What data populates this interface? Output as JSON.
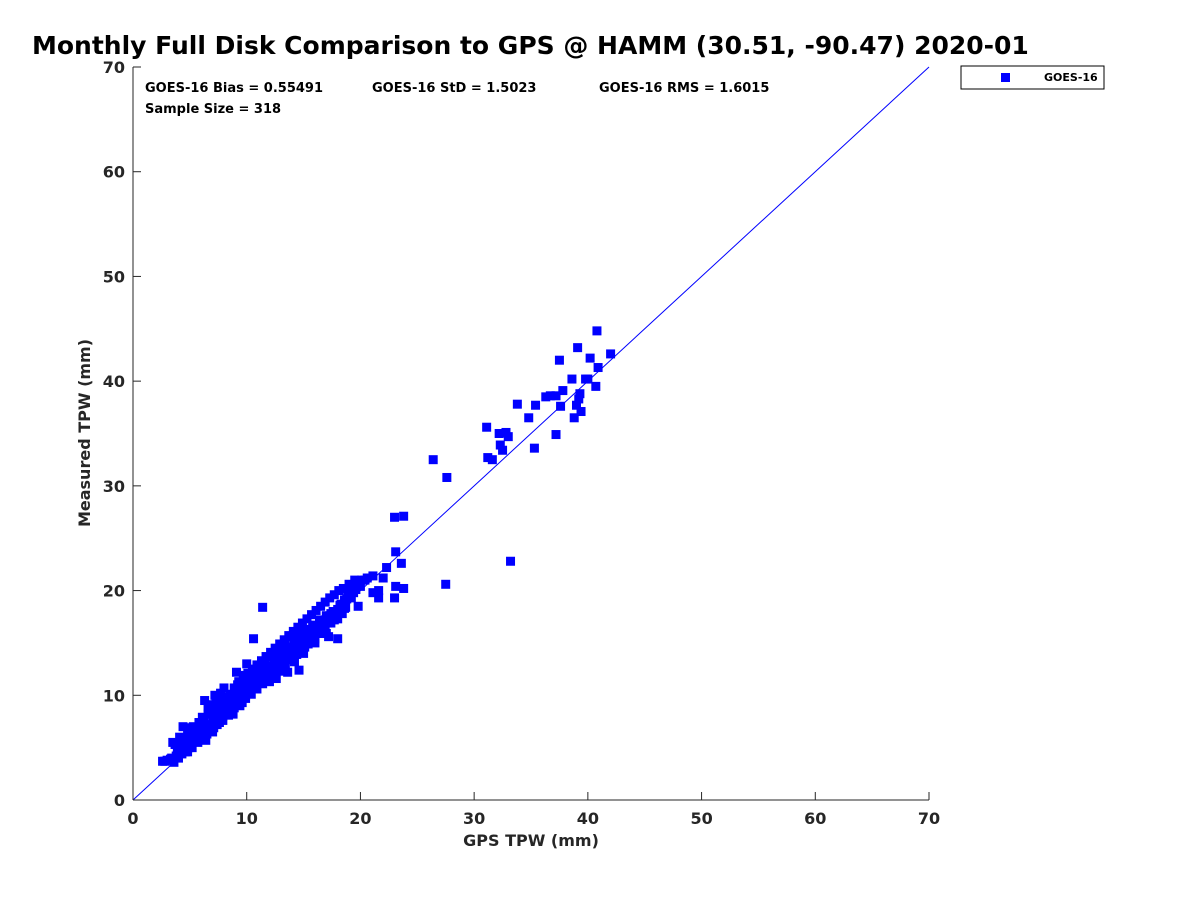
{
  "chart_data": {
    "type": "scatter",
    "title": "Monthly Full Disk Comparison to GPS @ HAMM (30.51, -90.47) 2020-01",
    "xlabel": "GPS TPW (mm)",
    "ylabel": "Measured TPW (mm)",
    "xlim": [
      0,
      70
    ],
    "ylim": [
      0,
      70
    ],
    "xticks": [
      "0",
      "10",
      "20",
      "30",
      "40",
      "50",
      "60",
      "70"
    ],
    "yticks": [
      "0",
      "10",
      "20",
      "30",
      "40",
      "50",
      "60",
      "70"
    ],
    "grid": false,
    "legend_position": "outside top-right",
    "reference_line": "y = x",
    "marker_color": "#0000ff",
    "line_color": "#0000ff",
    "stats": {
      "bias": "GOES-16 Bias = 0.55491",
      "std": "GOES-16 StD = 1.5023",
      "rms": "GOES-16 RMS = 1.6015",
      "sample": "Sample Size = 318"
    },
    "series": [
      {
        "name": "GOES-16",
        "points": [
          [
            2.6,
            3.7
          ],
          [
            3.0,
            3.8
          ],
          [
            3.3,
            3.9
          ],
          [
            3.6,
            3.6
          ],
          [
            3.8,
            4.2
          ],
          [
            4.0,
            4.6
          ],
          [
            4.2,
            5.2
          ],
          [
            4.5,
            4.8
          ],
          [
            4.7,
            5.6
          ],
          [
            4.9,
            5.0
          ],
          [
            5.1,
            5.4
          ],
          [
            5.3,
            5.9
          ],
          [
            5.0,
            6.3
          ],
          [
            5.5,
            6.0
          ],
          [
            5.7,
            5.5
          ],
          [
            5.9,
            6.4
          ],
          [
            6.1,
            6.8
          ],
          [
            6.3,
            6.0
          ],
          [
            6.5,
            7.2
          ],
          [
            6.8,
            6.6
          ],
          [
            7.0,
            7.5
          ],
          [
            7.2,
            8.0
          ],
          [
            7.4,
            8.6
          ],
          [
            7.6,
            9.0
          ],
          [
            7.8,
            8.3
          ],
          [
            8.0,
            8.8
          ],
          [
            8.2,
            9.4
          ],
          [
            8.4,
            9.8
          ],
          [
            8.6,
            10.1
          ],
          [
            8.8,
            9.2
          ],
          [
            9.0,
            10.3
          ],
          [
            9.2,
            9.7
          ],
          [
            9.4,
            10.6
          ],
          [
            9.6,
            11.0
          ],
          [
            9.8,
            10.4
          ],
          [
            10.0,
            10.8
          ],
          [
            10.2,
            11.2
          ],
          [
            10.4,
            11.6
          ],
          [
            10.6,
            11.0
          ],
          [
            10.8,
            11.5
          ],
          [
            11.0,
            11.9
          ],
          [
            11.2,
            12.3
          ],
          [
            11.4,
            11.7
          ],
          [
            11.6,
            12.2
          ],
          [
            11.8,
            12.6
          ],
          [
            12.0,
            12.0
          ],
          [
            12.2,
            12.8
          ],
          [
            12.4,
            13.2
          ],
          [
            12.6,
            12.5
          ],
          [
            12.8,
            13.6
          ],
          [
            13.0,
            13.0
          ],
          [
            13.2,
            13.9
          ],
          [
            13.4,
            14.3
          ],
          [
            13.6,
            13.5
          ],
          [
            13.8,
            14.6
          ],
          [
            14.0,
            14.0
          ],
          [
            14.2,
            15.0
          ],
          [
            14.4,
            14.4
          ],
          [
            14.6,
            15.4
          ],
          [
            14.8,
            15.8
          ],
          [
            15.0,
            15.1
          ],
          [
            15.3,
            15.6
          ],
          [
            15.6,
            16.2
          ],
          [
            15.9,
            15.8
          ],
          [
            16.2,
            16.6
          ],
          [
            16.5,
            17.0
          ],
          [
            16.8,
            16.5
          ],
          [
            17.1,
            17.3
          ],
          [
            17.4,
            17.8
          ],
          [
            17.7,
            17.2
          ],
          [
            18.0,
            18.2
          ],
          [
            18.3,
            18.7
          ],
          [
            18.6,
            19.1
          ],
          [
            18.9,
            19.5
          ],
          [
            19.2,
            19.9
          ],
          [
            19.5,
            20.3
          ],
          [
            19.8,
            20.6
          ],
          [
            20.1,
            21.0
          ],
          [
            20.6,
            21.2
          ],
          [
            21.1,
            21.4
          ],
          [
            2.8,
            3.7
          ],
          [
            3.4,
            4.0
          ],
          [
            3.9,
            5.0
          ],
          [
            4.3,
            4.4
          ],
          [
            4.6,
            5.2
          ],
          [
            5.2,
            5.0
          ],
          [
            5.6,
            6.7
          ],
          [
            6.0,
            5.8
          ],
          [
            6.4,
            6.5
          ],
          [
            6.7,
            7.0
          ],
          [
            7.1,
            6.9
          ],
          [
            7.5,
            7.8
          ],
          [
            7.9,
            7.6
          ],
          [
            8.3,
            8.5
          ],
          [
            8.7,
            8.6
          ],
          [
            9.1,
            9.5
          ],
          [
            9.5,
            9.9
          ],
          [
            9.9,
            10.0
          ],
          [
            10.3,
            10.5
          ],
          [
            10.7,
            11.3
          ],
          [
            11.1,
            11.4
          ],
          [
            11.5,
            11.8
          ],
          [
            11.9,
            12.4
          ],
          [
            12.3,
            12.1
          ],
          [
            12.7,
            12.9
          ],
          [
            13.1,
            12.7
          ],
          [
            13.5,
            13.8
          ],
          [
            13.9,
            13.4
          ],
          [
            14.3,
            14.2
          ],
          [
            14.7,
            14.8
          ],
          [
            15.1,
            14.6
          ],
          [
            15.5,
            15.2
          ],
          [
            15.9,
            16.0
          ],
          [
            16.3,
            16.3
          ],
          [
            16.7,
            16.8
          ],
          [
            17.1,
            16.9
          ],
          [
            17.5,
            17.4
          ],
          [
            17.9,
            17.6
          ],
          [
            18.3,
            18.0
          ],
          [
            18.7,
            18.4
          ],
          [
            3.5,
            5.5
          ],
          [
            4.1,
            6.0
          ],
          [
            4.4,
            7.0
          ],
          [
            4.8,
            6.5
          ],
          [
            5.4,
            6.2
          ],
          [
            5.8,
            7.4
          ],
          [
            6.2,
            7.7
          ],
          [
            6.6,
            8.2
          ],
          [
            6.9,
            9.1
          ],
          [
            7.3,
            9.6
          ],
          [
            7.7,
            10.2
          ],
          [
            8.1,
            9.3
          ],
          [
            8.5,
            10.0
          ],
          [
            8.9,
            10.7
          ],
          [
            9.3,
            11.3
          ],
          [
            9.7,
            11.9
          ],
          [
            10.1,
            12.1
          ],
          [
            10.5,
            12.5
          ],
          [
            10.9,
            12.9
          ],
          [
            11.3,
            13.3
          ],
          [
            11.7,
            13.7
          ],
          [
            12.1,
            14.1
          ],
          [
            12.5,
            14.5
          ],
          [
            12.9,
            14.9
          ],
          [
            13.3,
            15.3
          ],
          [
            13.7,
            15.7
          ],
          [
            14.1,
            16.1
          ],
          [
            14.5,
            16.5
          ],
          [
            14.9,
            16.9
          ],
          [
            15.3,
            17.3
          ],
          [
            15.7,
            17.7
          ],
          [
            16.1,
            18.1
          ],
          [
            16.5,
            18.5
          ],
          [
            16.9,
            18.9
          ],
          [
            17.3,
            19.3
          ],
          [
            17.7,
            19.6
          ],
          [
            18.1,
            20.0
          ],
          [
            18.5,
            20.2
          ],
          [
            19.0,
            20.6
          ],
          [
            19.5,
            21.0
          ],
          [
            4.0,
            4.0
          ],
          [
            4.6,
            4.6
          ],
          [
            5.1,
            5.3
          ],
          [
            5.5,
            5.6
          ],
          [
            6.0,
            6.1
          ],
          [
            6.5,
            6.3
          ],
          [
            7.0,
            7.1
          ],
          [
            7.4,
            7.2
          ],
          [
            7.9,
            8.0
          ],
          [
            8.4,
            8.1
          ],
          [
            8.9,
            8.8
          ],
          [
            9.4,
            9.0
          ],
          [
            9.9,
            9.7
          ],
          [
            10.4,
            10.1
          ],
          [
            10.9,
            10.6
          ],
          [
            11.4,
            11.1
          ],
          [
            11.9,
            11.6
          ],
          [
            12.4,
            12.2
          ],
          [
            12.9,
            12.6
          ],
          [
            13.4,
            13.0
          ],
          [
            13.9,
            13.6
          ],
          [
            14.4,
            13.9
          ],
          [
            14.9,
            14.4
          ],
          [
            15.4,
            14.9
          ],
          [
            15.9,
            15.4
          ],
          [
            16.4,
            15.9
          ],
          [
            16.9,
            16.4
          ],
          [
            17.4,
            16.9
          ],
          [
            17.9,
            17.4
          ],
          [
            18.4,
            17.8
          ],
          [
            5.3,
            7.0
          ],
          [
            6.3,
            9.5
          ],
          [
            7.2,
            10.0
          ],
          [
            8.0,
            10.7
          ],
          [
            9.1,
            12.2
          ],
          [
            10.0,
            13.0
          ],
          [
            10.6,
            15.4
          ],
          [
            11.4,
            18.4
          ],
          [
            12.6,
            11.6
          ],
          [
            13.6,
            12.2
          ],
          [
            14.6,
            12.4
          ],
          [
            16.0,
            15.4
          ],
          [
            17.2,
            15.6
          ],
          [
            18.0,
            15.4
          ],
          [
            19.8,
            18.5
          ],
          [
            21.1,
            19.8
          ],
          [
            21.6,
            19.3
          ],
          [
            22.3,
            22.2
          ],
          [
            23.0,
            19.3
          ],
          [
            23.1,
            20.4
          ],
          [
            23.1,
            23.7
          ],
          [
            23.6,
            22.6
          ],
          [
            23.8,
            20.2
          ],
          [
            23.0,
            27.0
          ],
          [
            23.8,
            27.1
          ],
          [
            26.4,
            32.5
          ],
          [
            27.6,
            30.8
          ],
          [
            27.5,
            20.6
          ],
          [
            31.1,
            35.6
          ],
          [
            31.2,
            32.7
          ],
          [
            31.6,
            32.5
          ],
          [
            32.2,
            35.0
          ],
          [
            32.3,
            33.9
          ],
          [
            32.5,
            33.4
          ],
          [
            32.8,
            35.1
          ],
          [
            33.0,
            34.7
          ],
          [
            33.2,
            22.8
          ],
          [
            33.8,
            37.8
          ],
          [
            34.8,
            36.5
          ],
          [
            35.3,
            33.6
          ],
          [
            35.4,
            37.7
          ],
          [
            36.3,
            38.5
          ],
          [
            36.7,
            38.6
          ],
          [
            37.2,
            34.9
          ],
          [
            37.2,
            38.6
          ],
          [
            37.6,
            37.6
          ],
          [
            37.5,
            42.0
          ],
          [
            37.8,
            39.1
          ],
          [
            38.6,
            40.2
          ],
          [
            38.8,
            36.5
          ],
          [
            39.0,
            37.7
          ],
          [
            39.1,
            43.2
          ],
          [
            39.2,
            38.3
          ],
          [
            39.3,
            38.8
          ],
          [
            39.4,
            37.1
          ],
          [
            39.8,
            40.2
          ],
          [
            40.0,
            40.2
          ],
          [
            40.2,
            42.2
          ],
          [
            40.7,
            39.5
          ],
          [
            40.8,
            44.8
          ],
          [
            40.9,
            41.3
          ],
          [
            42.0,
            42.6
          ],
          [
            3.7,
            5.3
          ],
          [
            4.3,
            5.7
          ],
          [
            4.9,
            6.9
          ],
          [
            5.6,
            6.4
          ],
          [
            6.1,
            7.9
          ],
          [
            6.6,
            8.9
          ],
          [
            7.3,
            8.6
          ],
          [
            7.8,
            9.5
          ],
          [
            8.6,
            9.4
          ],
          [
            9.2,
            11.0
          ],
          [
            9.8,
            11.6
          ],
          [
            10.4,
            11.9
          ],
          [
            11.0,
            12.2
          ],
          [
            11.6,
            13.0
          ],
          [
            12.2,
            13.8
          ],
          [
            12.8,
            14.3
          ],
          [
            13.4,
            15.0
          ],
          [
            14.0,
            15.6
          ],
          [
            14.6,
            15.9
          ],
          [
            15.2,
            16.3
          ],
          [
            15.8,
            16.7
          ],
          [
            16.4,
            17.2
          ],
          [
            17.0,
            17.6
          ],
          [
            17.6,
            18.0
          ],
          [
            18.2,
            18.6
          ],
          [
            18.8,
            19.2
          ],
          [
            19.4,
            19.8
          ],
          [
            20.0,
            20.4
          ],
          [
            4.4,
            5.0
          ],
          [
            5.8,
            5.9
          ],
          [
            6.8,
            6.9
          ],
          [
            7.6,
            7.4
          ],
          [
            8.2,
            8.4
          ],
          [
            9.0,
            9.6
          ],
          [
            9.6,
            10.5
          ],
          [
            10.2,
            10.9
          ],
          [
            10.8,
            11.7
          ],
          [
            11.4,
            12.1
          ],
          [
            12.0,
            12.6
          ],
          [
            12.6,
            13.2
          ],
          [
            13.2,
            13.4
          ],
          [
            13.8,
            14.4
          ],
          [
            14.4,
            14.9
          ],
          [
            15.0,
            15.5
          ],
          [
            15.6,
            16.0
          ],
          [
            16.2,
            16.6
          ],
          [
            16.8,
            17.1
          ],
          [
            17.4,
            17.6
          ],
          [
            18.0,
            17.3
          ],
          [
            18.6,
            18.3
          ],
          [
            19.2,
            19.3
          ],
          [
            19.6,
            20.1
          ],
          [
            20.4,
            21.0
          ],
          [
            21.6,
            20.0
          ],
          [
            22.0,
            21.2
          ],
          [
            4.8,
            4.6
          ],
          [
            6.4,
            5.7
          ],
          [
            7.0,
            6.5
          ],
          [
            8.8,
            8.2
          ],
          [
            9.6,
            9.3
          ],
          [
            12.0,
            11.3
          ],
          [
            13.0,
            12.3
          ],
          [
            14.2,
            13.2
          ],
          [
            15.0,
            14.0
          ],
          [
            16.0,
            15.0
          ],
          [
            17.0,
            15.9
          ]
        ]
      }
    ]
  }
}
